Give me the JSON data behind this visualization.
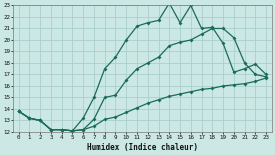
{
  "xlabel": "Humidex (Indice chaleur)",
  "background_color": "#cce8e5",
  "grid_color": "#aacfcc",
  "line_color": "#1a6b5a",
  "xlim": [
    -0.5,
    23.5
  ],
  "ylim": [
    12,
    23
  ],
  "line1_y": [
    13.8,
    13.2,
    13.0,
    12.2,
    12.2,
    12.1,
    13.2,
    15.0,
    17.5,
    18.5,
    20.0,
    21.2,
    21.5,
    21.7,
    23.2,
    21.5,
    23.0,
    21.0,
    21.1,
    19.7,
    17.2,
    17.5,
    17.9,
    17.0
  ],
  "line2_y": [
    13.8,
    13.2,
    13.0,
    12.2,
    12.2,
    12.1,
    12.2,
    13.1,
    15.0,
    15.2,
    16.5,
    17.5,
    18.0,
    18.5,
    19.5,
    19.8,
    20.0,
    20.5,
    21.0,
    21.0,
    20.2,
    18.0,
    17.0,
    16.8
  ],
  "line3_y": [
    13.8,
    13.2,
    13.0,
    12.2,
    12.2,
    12.1,
    12.2,
    12.5,
    13.1,
    13.3,
    13.7,
    14.1,
    14.5,
    14.8,
    15.1,
    15.3,
    15.5,
    15.7,
    15.8,
    16.0,
    16.1,
    16.2,
    16.4,
    16.7
  ],
  "markersize": 2.0,
  "linewidth": 0.9
}
